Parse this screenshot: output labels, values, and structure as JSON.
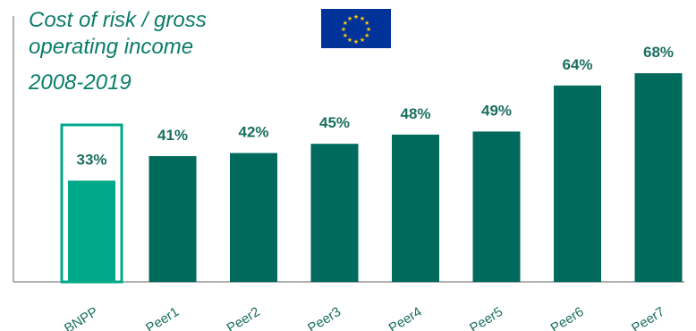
{
  "chart_data": {
    "type": "bar",
    "title": "Cost of risk / gross\noperating income",
    "subtitle": "2008-2019",
    "categories": [
      "BNPP",
      "Peer1",
      "Peer2",
      "Peer3",
      "Peer4",
      "Peer5",
      "Peer6",
      "Peer7"
    ],
    "values": [
      33,
      41,
      42,
      45,
      48,
      49,
      64,
      68
    ],
    "data_labels": [
      "33%",
      "41%",
      "42%",
      "45%",
      "48%",
      "49%",
      "64%",
      "68%"
    ],
    "xlabel": "",
    "ylabel": "",
    "ylim": [
      0,
      100
    ],
    "highlight_category": "BNPP",
    "grid": false,
    "colors": {
      "highlight": "#00a88a",
      "bars": "#006a5c",
      "label": "#1a6f5f",
      "title": "#0a7d6a",
      "axis": "#9a9a9a",
      "flag_blue": "#003399",
      "flag_star": "#ffcc00"
    }
  },
  "flag": {
    "icon": "eu-flag-icon"
  }
}
